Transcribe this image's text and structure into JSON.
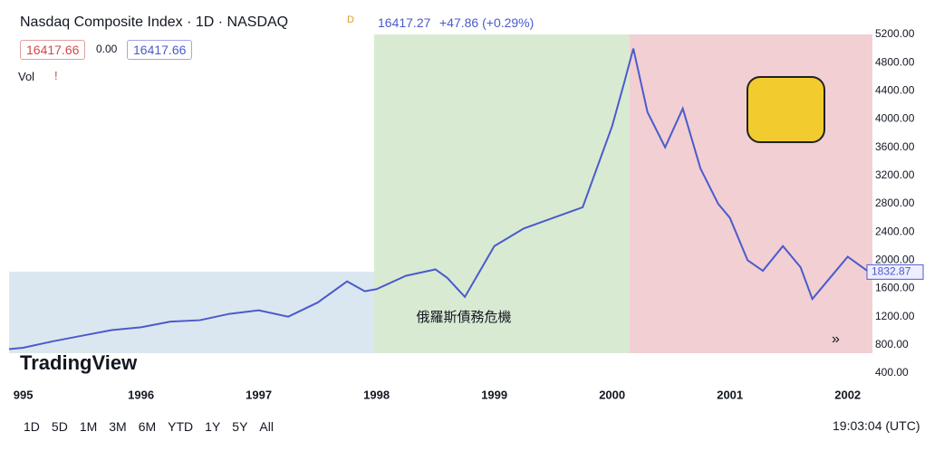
{
  "chart_data": {
    "type": "line",
    "title": "Nasdaq Composite Index · 1D · NASDAQ",
    "annotation": "俄羅斯債務危機",
    "x": [
      1994.88,
      1995.0,
      1995.25,
      1995.5,
      1995.75,
      1996.0,
      1996.25,
      1996.5,
      1996.75,
      1997.0,
      1997.25,
      1997.5,
      1997.75,
      1997.9,
      1998.0,
      1998.25,
      1998.5,
      1998.6,
      1998.75,
      1999.0,
      1999.25,
      1999.5,
      1999.75,
      2000.0,
      2000.1,
      2000.18,
      2000.3,
      2000.45,
      2000.6,
      2000.75,
      2000.9,
      2001.0,
      2001.15,
      2001.28,
      2001.45,
      2001.6,
      2001.7,
      2001.85,
      2002.0,
      2002.18
    ],
    "values": [
      740,
      760,
      850,
      930,
      1010,
      1050,
      1130,
      1150,
      1240,
      1290,
      1200,
      1400,
      1700,
      1560,
      1590,
      1780,
      1870,
      1750,
      1480,
      2200,
      2450,
      2600,
      2750,
      3900,
      4500,
      5000,
      4100,
      3600,
      4150,
      3300,
      2800,
      2600,
      2000,
      1850,
      2200,
      1900,
      1450,
      1750,
      2050,
      1832.87
    ],
    "color": "#4a5bcc",
    "xlim": [
      1994.88,
      2002.21
    ],
    "xticks": [
      {
        "value": 1995,
        "label": "995"
      },
      1996,
      1997,
      1998,
      1999,
      2000,
      2001,
      2002
    ],
    "ylim": [
      400,
      5200
    ],
    "yticks": [
      {
        "value": 400,
        "label": "400.00"
      },
      {
        "value": 800,
        "label": "800.00"
      },
      {
        "value": 1200,
        "label": "1200.00"
      },
      {
        "value": 1600,
        "label": "1600.00"
      },
      {
        "value": 2000,
        "label": "2000.00"
      },
      {
        "value": 2400,
        "label": "2400.00"
      },
      {
        "value": 2800,
        "label": "2800.00"
      },
      {
        "value": 3200,
        "label": "3200.00"
      },
      {
        "value": 3600,
        "label": "3600.00"
      },
      {
        "value": 4000,
        "label": "4000.00"
      },
      {
        "value": 4400,
        "label": "4400.00"
      },
      {
        "value": 4800,
        "label": "4800.00"
      },
      {
        "value": 5200,
        "label": "5200.00"
      }
    ],
    "grid": false
  },
  "ui": {
    "badge": "D",
    "price": "16417.27",
    "change": "+47.86 (+0.29%)",
    "bid": "16417.66",
    "spread": "0.00",
    "ask": "16417.66",
    "vol": "Vol",
    "vol_alert": "!",
    "logo": "TradingView",
    "more": "»",
    "ranges": [
      "1D",
      "5D",
      "1M",
      "3M",
      "6M",
      "YTD",
      "1Y",
      "5Y",
      "All"
    ],
    "clock": "19:03:04 (UTC)"
  }
}
